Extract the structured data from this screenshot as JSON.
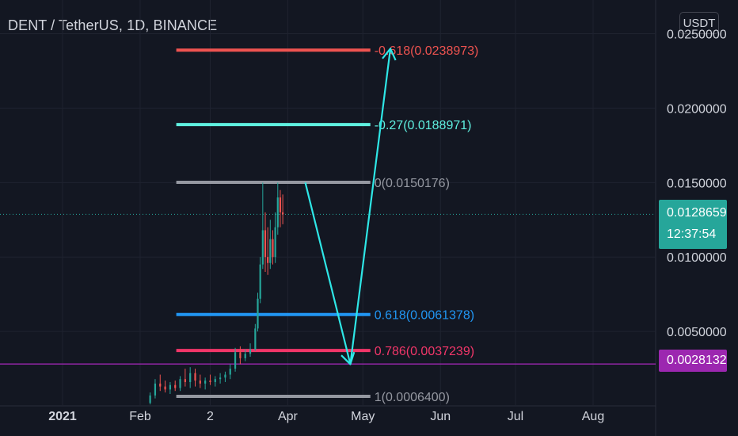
{
  "header": {
    "title": "DENT / TetherUS, 1D, BINANCE",
    "currency_button": "USDT"
  },
  "colors": {
    "background": "#131722",
    "grid": "#1f2330",
    "axis_text": "#d1d4dc",
    "up": "#26a69a",
    "down": "#ef5350",
    "arrow": "#2ee6e6",
    "last_price": "#26a69a",
    "purple_line": "#9c27b0"
  },
  "price_badge": {
    "price": "0.0128659",
    "countdown": "12:37:54"
  },
  "line_badge": {
    "price": "0.0028132"
  },
  "chart_data": {
    "type": "candlestick",
    "title": "DENT / TetherUS, 1D, BINANCE",
    "ylim": [
      0,
      0.0262
    ],
    "y_ticks": [
      "0.0050000",
      "0.0100000",
      "0.0150000",
      "0.0200000",
      "0.0250000"
    ],
    "x_ticks": [
      "2021",
      "Feb",
      "2",
      "Apr",
      "May",
      "Jun",
      "Jul",
      "Aug"
    ],
    "x_tick_dates": [
      "2021-01-01",
      "2021-02-01",
      "2021-03-01",
      "2021-04-01",
      "2021-05-01",
      "2021-06-01",
      "2021-07-01",
      "2021-08-01"
    ],
    "x_range": [
      "2020-12-07",
      "2021-08-26"
    ],
    "grid": true,
    "last_price": 0.0128659,
    "horizontal_line": 0.0028132,
    "fib_levels": [
      {
        "ratio": "-0.618",
        "value": "0.0238973",
        "label": "-0.618(0.0238973)",
        "color": "#ef5350"
      },
      {
        "ratio": "-0.27",
        "value": "0.0188971",
        "label": "-0.27(0.0188971)",
        "color": "#5ff0e0"
      },
      {
        "ratio": "0",
        "value": "0.0150176",
        "label": "0(0.0150176)",
        "color": "#9598a1"
      },
      {
        "ratio": "0.618",
        "value": "0.0061378",
        "label": "0.618(0.0061378)",
        "color": "#2196f3"
      },
      {
        "ratio": "0.786",
        "value": "0.0037239",
        "label": "0.786(0.0037239)",
        "color": "#f23669"
      },
      {
        "ratio": "1",
        "value": "0.0006400",
        "label": "1(0.0006400)",
        "color": "#9598a1"
      }
    ],
    "fib_range": [
      "2021-02-05",
      "2021-05-04"
    ],
    "candles": [
      {
        "date": "2021-02-05",
        "open": 0.0002,
        "high": 0.0009,
        "low": 0.0001,
        "close": 0.0007
      },
      {
        "date": "2021-02-07",
        "open": 0.0007,
        "high": 0.0018,
        "low": 0.0005,
        "close": 0.0015
      },
      {
        "date": "2021-02-09",
        "open": 0.0015,
        "high": 0.0021,
        "low": 0.001,
        "close": 0.0013
      },
      {
        "date": "2021-02-11",
        "open": 0.0013,
        "high": 0.0017,
        "low": 0.0009,
        "close": 0.0011
      },
      {
        "date": "2021-02-13",
        "open": 0.0011,
        "high": 0.0016,
        "low": 0.0008,
        "close": 0.0014
      },
      {
        "date": "2021-02-15",
        "open": 0.0014,
        "high": 0.0017,
        "low": 0.001,
        "close": 0.0012
      },
      {
        "date": "2021-02-17",
        "open": 0.0012,
        "high": 0.002,
        "low": 0.001,
        "close": 0.0018
      },
      {
        "date": "2021-02-19",
        "open": 0.0018,
        "high": 0.0025,
        "low": 0.0013,
        "close": 0.0016
      },
      {
        "date": "2021-02-21",
        "open": 0.0016,
        "high": 0.0026,
        "low": 0.0012,
        "close": 0.0022
      },
      {
        "date": "2021-02-23",
        "open": 0.0022,
        "high": 0.0025,
        "low": 0.0013,
        "close": 0.0017
      },
      {
        "date": "2021-02-25",
        "open": 0.0017,
        "high": 0.0021,
        "low": 0.0012,
        "close": 0.0015
      },
      {
        "date": "2021-02-27",
        "open": 0.0015,
        "high": 0.0019,
        "low": 0.0011,
        "close": 0.0017
      },
      {
        "date": "2021-03-01",
        "open": 0.0017,
        "high": 0.0021,
        "low": 0.0014,
        "close": 0.0016
      },
      {
        "date": "2021-03-03",
        "open": 0.0016,
        "high": 0.002,
        "low": 0.0013,
        "close": 0.0018
      },
      {
        "date": "2021-03-05",
        "open": 0.0018,
        "high": 0.0022,
        "low": 0.0015,
        "close": 0.0019
      },
      {
        "date": "2021-03-07",
        "open": 0.0019,
        "high": 0.0023,
        "low": 0.0016,
        "close": 0.0021
      },
      {
        "date": "2021-03-09",
        "open": 0.0021,
        "high": 0.0028,
        "low": 0.0018,
        "close": 0.0025
      },
      {
        "date": "2021-03-11",
        "open": 0.0025,
        "high": 0.0039,
        "low": 0.0023,
        "close": 0.0036
      },
      {
        "date": "2021-03-13",
        "open": 0.0036,
        "high": 0.004,
        "low": 0.0028,
        "close": 0.0032
      },
      {
        "date": "2021-03-15",
        "open": 0.0032,
        "high": 0.0038,
        "low": 0.003,
        "close": 0.0035
      },
      {
        "date": "2021-03-17",
        "open": 0.0035,
        "high": 0.0042,
        "low": 0.0033,
        "close": 0.0038
      },
      {
        "date": "2021-03-19",
        "open": 0.0038,
        "high": 0.0055,
        "low": 0.0037,
        "close": 0.0052
      },
      {
        "date": "2021-03-20",
        "open": 0.0052,
        "high": 0.0076,
        "low": 0.005,
        "close": 0.0072
      },
      {
        "date": "2021-03-21",
        "open": 0.0072,
        "high": 0.01,
        "low": 0.0069,
        "close": 0.0095
      },
      {
        "date": "2021-03-22",
        "open": 0.0095,
        "high": 0.015,
        "low": 0.0092,
        "close": 0.0118
      },
      {
        "date": "2021-03-23",
        "open": 0.0118,
        "high": 0.013,
        "low": 0.009,
        "close": 0.01
      },
      {
        "date": "2021-03-24",
        "open": 0.01,
        "high": 0.012,
        "low": 0.0088,
        "close": 0.0096
      },
      {
        "date": "2021-03-25",
        "open": 0.0096,
        "high": 0.0125,
        "low": 0.0092,
        "close": 0.0112
      },
      {
        "date": "2021-03-26",
        "open": 0.0112,
        "high": 0.0118,
        "low": 0.0095,
        "close": 0.01
      },
      {
        "date": "2021-03-27",
        "open": 0.01,
        "high": 0.013,
        "low": 0.0096,
        "close": 0.012
      },
      {
        "date": "2021-03-28",
        "open": 0.012,
        "high": 0.015,
        "low": 0.0115,
        "close": 0.014
      },
      {
        "date": "2021-03-29",
        "open": 0.014,
        "high": 0.0145,
        "low": 0.012,
        "close": 0.013
      },
      {
        "date": "2021-03-30",
        "open": 0.013,
        "high": 0.0142,
        "low": 0.0122,
        "close": 0.01287
      }
    ],
    "arrows": [
      {
        "points": [
          [
            "2021-04-08",
            0.015
          ],
          [
            "2021-04-26",
            0.0028
          ],
          [
            "2021-05-12",
            0.024
          ]
        ]
      }
    ]
  }
}
